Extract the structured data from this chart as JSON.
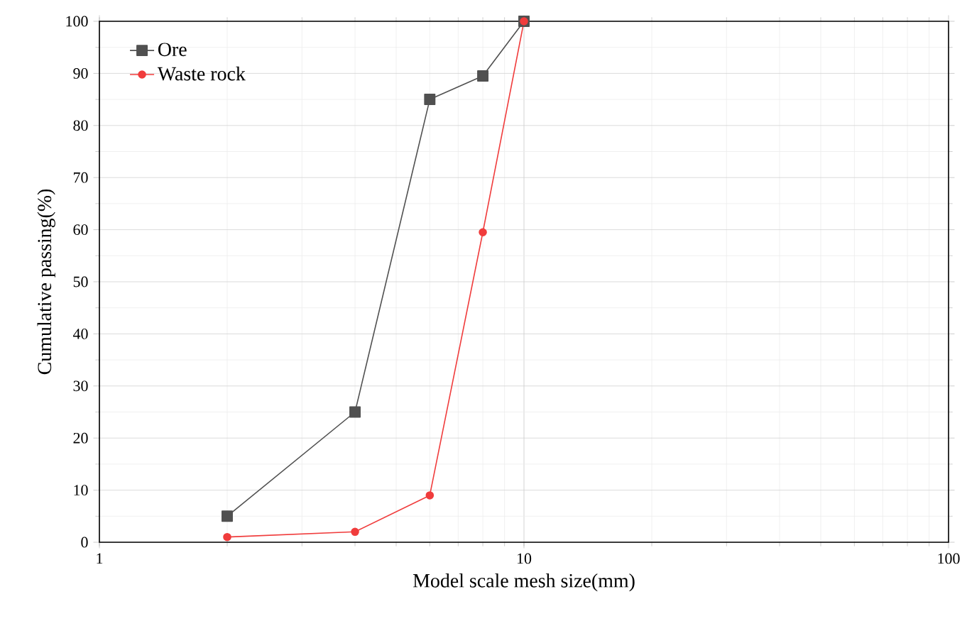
{
  "chart_data": {
    "type": "line",
    "xlabel": "Model scale mesh size(mm)",
    "ylabel": "Cumulative passing(%)",
    "log": "x",
    "xlim": [
      1,
      100
    ],
    "xticks": [
      1,
      10,
      100
    ],
    "ylim": [
      0,
      100
    ],
    "yticks": [
      0,
      10,
      20,
      30,
      40,
      50,
      60,
      70,
      80,
      90,
      100
    ],
    "grid": true,
    "legend": "top left",
    "line_style": "solid",
    "series": [
      {
        "name": "Ore",
        "color": "#505050",
        "marker": "square",
        "x": [
          2,
          4,
          6,
          8,
          10
        ],
        "values": [
          5,
          25,
          85,
          89.5,
          100
        ]
      },
      {
        "name": "Waste rock",
        "color": "#f03c3c",
        "marker": "circle",
        "x": [
          2,
          4,
          6,
          8,
          10
        ],
        "values": [
          1,
          2,
          9,
          59.5,
          100
        ]
      }
    ]
  }
}
